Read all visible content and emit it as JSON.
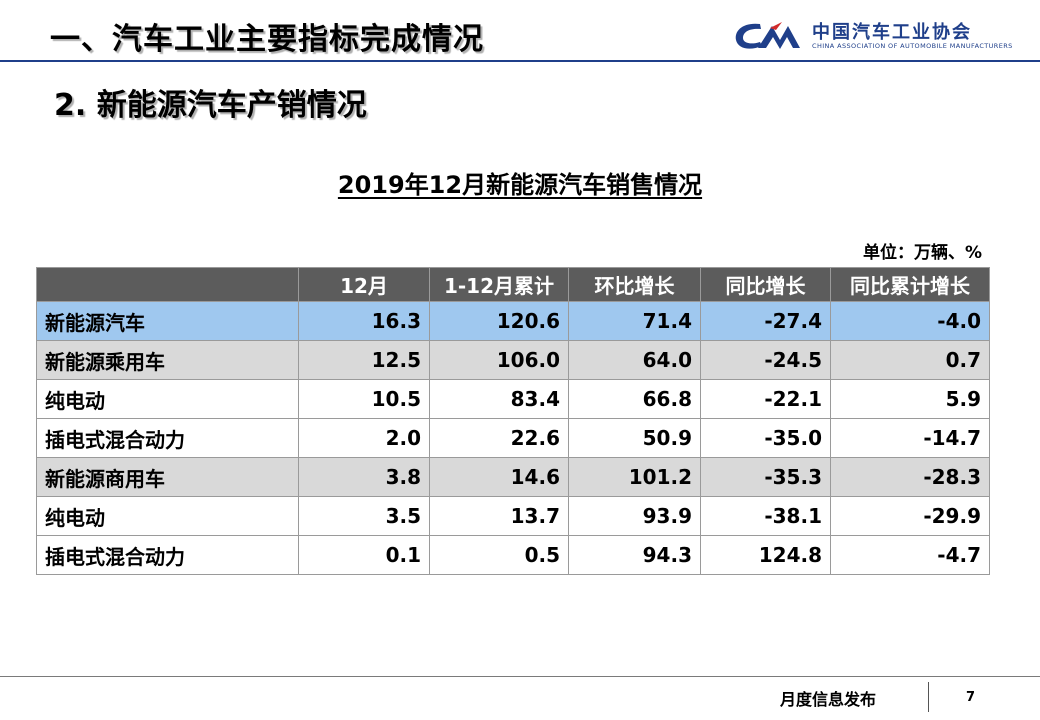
{
  "header": {
    "section_title": "一、汽车工业主要指标完成情况",
    "org_name": "中国汽车工业协会",
    "org_name_en": "CHINA ASSOCIATION OF AUTOMOBILE MANUFACTURERS",
    "logo_icon": "caam-logo-icon",
    "rule_color": "#1f3f8a"
  },
  "sub_title": "2. 新能源汽车产销情况",
  "table_title": "2019年12月新能源汽车销售情况",
  "unit": "单位：万辆、%",
  "table": {
    "columns": [
      "12月",
      "1-12月累计",
      "环比增长",
      "同比增长",
      "同比累计增长"
    ],
    "header_color": "#5c5c5c",
    "total_color": "#9fc8ef",
    "group_color": "#d9d9d9",
    "rows": [
      {
        "label": "新能源汽车",
        "level": 0,
        "type": "total",
        "values": [
          "16.3",
          "120.6",
          "71.4",
          "-27.4",
          "-4.0"
        ]
      },
      {
        "label": "新能源乘用车",
        "level": 1,
        "type": "group",
        "values": [
          "12.5",
          "106.0",
          "64.0",
          "-24.5",
          "0.7"
        ]
      },
      {
        "label": "纯电动",
        "level": 2,
        "type": "item",
        "values": [
          "10.5",
          "83.4",
          "66.8",
          "-22.1",
          "5.9"
        ]
      },
      {
        "label": "插电式混合动力",
        "level": 2,
        "type": "item",
        "values": [
          "2.0",
          "22.6",
          "50.9",
          "-35.0",
          "-14.7"
        ]
      },
      {
        "label": "新能源商用车",
        "level": 1,
        "type": "group",
        "values": [
          "3.8",
          "14.6",
          "101.2",
          "-35.3",
          "-28.3"
        ]
      },
      {
        "label": "纯电动",
        "level": 2,
        "type": "item",
        "values": [
          "3.5",
          "13.7",
          "93.9",
          "-38.1",
          "-29.9"
        ]
      },
      {
        "label": "插电式混合动力",
        "level": 2,
        "type": "item",
        "values": [
          "0.1",
          "0.5",
          "94.3",
          "124.8",
          "-4.7"
        ]
      }
    ]
  },
  "footer": {
    "text": "月度信息发布",
    "page_number": "7"
  }
}
